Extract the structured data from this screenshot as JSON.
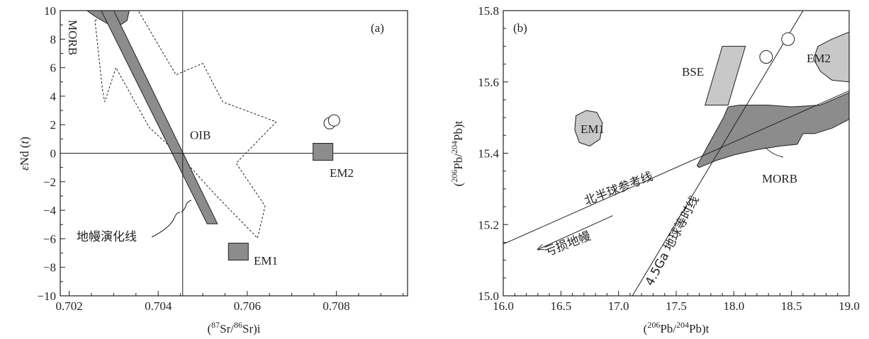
{
  "chart_data": [
    {
      "type": "scatter",
      "panel_label": "(a)",
      "ylabel": "εNd (t)",
      "xlabel_parts": {
        "open": "(",
        "sup1": "87",
        "mid": "Sr/",
        "sup2": "86",
        "close": "Sr)i"
      },
      "xlim": [
        0.7018,
        0.7096
      ],
      "ylim": [
        -10,
        10
      ],
      "xticks": [
        0.702,
        0.704,
        0.706,
        0.708
      ],
      "xtick_labels": [
        "0.702",
        "0.704",
        "0.706",
        "0.708"
      ],
      "yticks": [
        10,
        8,
        6,
        4,
        2,
        0,
        -2,
        -4,
        -6,
        -8,
        -10
      ],
      "ytick_labels": [
        "10",
        "8",
        "6",
        "4",
        "2",
        "0",
        "−2",
        "−4",
        "−6",
        "−8",
        "−10"
      ],
      "grid": false,
      "reference_lines": {
        "vertical_x": 0.70455,
        "horizontal_y": 0
      },
      "fields": {
        "morb": {
          "label": "MORB",
          "vertices": [
            [
              0.7024,
              10
            ],
            [
              0.70335,
              10
            ],
            [
              0.7033,
              9.3
            ],
            [
              0.7031,
              8.9
            ],
            [
              0.70285,
              9.1
            ],
            [
              0.70258,
              9.6
            ]
          ]
        },
        "mantle_evolution_band": {
          "label": "地幔演化线",
          "vertices": [
            [
              0.70272,
              10
            ],
            [
              0.703,
              10
            ],
            [
              0.70533,
              -4.95
            ],
            [
              0.7051,
              -4.95
            ]
          ]
        },
        "oib": {
          "label": "OIB",
          "vertices": [
            [
              0.70258,
              9.3
            ],
            [
              0.703,
              10
            ],
            [
              0.70355,
              10
            ],
            [
              0.7044,
              5.5
            ],
            [
              0.705,
              6.3
            ],
            [
              0.70545,
              3.6
            ],
            [
              0.70665,
              2.2
            ],
            [
              0.70575,
              -0.7
            ],
            [
              0.7064,
              -3.7
            ],
            [
              0.70623,
              -5.95
            ],
            [
              0.70525,
              -2.8
            ],
            [
              0.7045,
              -0.2
            ],
            [
              0.7038,
              1.8
            ],
            [
              0.70305,
              6.0
            ],
            [
              0.7028,
              3.6
            ],
            [
              0.70275,
              4.4
            ]
          ]
        }
      },
      "squares": [
        {
          "label": "EM2",
          "x": 0.7077,
          "y": 0.1
        },
        {
          "label": "EM1",
          "x": 0.7058,
          "y": -6.9
        }
      ],
      "circles": [
        {
          "x": 0.70785,
          "y": 2.1
        },
        {
          "x": 0.70795,
          "y": 2.3
        }
      ],
      "text_labels": {
        "oib": "OIB",
        "em2": "EM2",
        "em1": "EM1",
        "morb": "MORB",
        "mantle": "地幔演化线"
      },
      "colors": {
        "dark_fill": "#8c8c8c",
        "stroke": "#231f20"
      }
    },
    {
      "type": "scatter",
      "panel_label": "(b)",
      "ylabel_parts": {
        "open": "(",
        "sup1": "206",
        "mid": "Pb/",
        "sup2": "204",
        "close": "Pb)t"
      },
      "xlabel_parts": {
        "open": "(",
        "sup1": "206",
        "mid": "Pb/",
        "sup2": "204",
        "close": "Pb)t"
      },
      "xlim": [
        16.0,
        19.0
      ],
      "ylim": [
        15.0,
        15.8
      ],
      "xticks": [
        16.0,
        16.5,
        17.0,
        17.5,
        18.0,
        18.5,
        19.0
      ],
      "xtick_labels": [
        "16.0",
        "16.5",
        "17.0",
        "17.5",
        "18.0",
        "18.5",
        "19.0"
      ],
      "yticks": [
        15.0,
        15.2,
        15.4,
        15.6,
        15.8
      ],
      "ytick_labels": [
        "15.0",
        "15.2",
        "15.4",
        "15.6",
        "15.8"
      ],
      "grid": false,
      "lines": {
        "nhrl": {
          "label": "北半球参考线",
          "from": [
            16.0,
            15.145
          ],
          "to": [
            19.0,
            15.575
          ]
        },
        "geochron": {
          "label": "4.5Ga 地球等时线",
          "from": [
            17.12,
            15.0
          ],
          "to": [
            18.6,
            15.8
          ]
        }
      },
      "arrow": {
        "label": "亏损地幔",
        "from": [
          16.95,
          15.225
        ],
        "to": [
          16.3,
          15.13
        ]
      },
      "fields": {
        "bse": {
          "label": "BSE",
          "vertices": [
            [
              17.75,
              15.535
            ],
            [
              17.95,
              15.535
            ],
            [
              18.1,
              15.7
            ],
            [
              17.9,
              15.7
            ]
          ]
        },
        "em1": {
          "label": "EM1",
          "vertices": [
            [
              16.63,
              15.505
            ],
            [
              16.72,
              15.52
            ],
            [
              16.81,
              15.515
            ],
            [
              16.86,
              15.485
            ],
            [
              16.84,
              15.44
            ],
            [
              16.75,
              15.42
            ],
            [
              16.66,
              15.43
            ],
            [
              16.62,
              15.465
            ]
          ]
        },
        "em2": {
          "label": "EM2",
          "vertices": [
            [
              18.73,
              15.7
            ],
            [
              18.85,
              15.72
            ],
            [
              19.0,
              15.74
            ],
            [
              19.0,
              15.6
            ],
            [
              18.85,
              15.605
            ],
            [
              18.75,
              15.63
            ],
            [
              18.69,
              15.665
            ]
          ]
        },
        "morb": {
          "label": "MORB",
          "vertices": [
            [
              17.68,
              15.365
            ],
            [
              17.74,
              15.4
            ],
            [
              17.79,
              15.43
            ],
            [
              17.85,
              15.465
            ],
            [
              17.91,
              15.5
            ],
            [
              17.95,
              15.53
            ],
            [
              18.05,
              15.535
            ],
            [
              18.3,
              15.535
            ],
            [
              18.5,
              15.53
            ],
            [
              18.75,
              15.535
            ],
            [
              19.0,
              15.57
            ],
            [
              19.0,
              15.495
            ],
            [
              18.85,
              15.47
            ],
            [
              18.7,
              15.455
            ],
            [
              18.6,
              15.455
            ],
            [
              18.55,
              15.425
            ],
            [
              18.4,
              15.42
            ],
            [
              18.2,
              15.41
            ],
            [
              18.0,
              15.395
            ],
            [
              17.85,
              15.38
            ],
            [
              17.7,
              15.36
            ]
          ]
        }
      },
      "circles": [
        {
          "x": 18.28,
          "y": 15.67
        },
        {
          "x": 18.47,
          "y": 15.72
        }
      ],
      "text_labels": {
        "bse": "BSE",
        "em1": "EM1",
        "em2": "EM2",
        "morb": "MORB",
        "nhrl": "北半球参考线",
        "geochron": "4.5Ga 地球等时线",
        "depleted": "亏损地幔"
      },
      "colors": {
        "dark_fill": "#8c8c8c",
        "light_fill": "#c8c8c8",
        "stroke": "#231f20"
      }
    }
  ]
}
